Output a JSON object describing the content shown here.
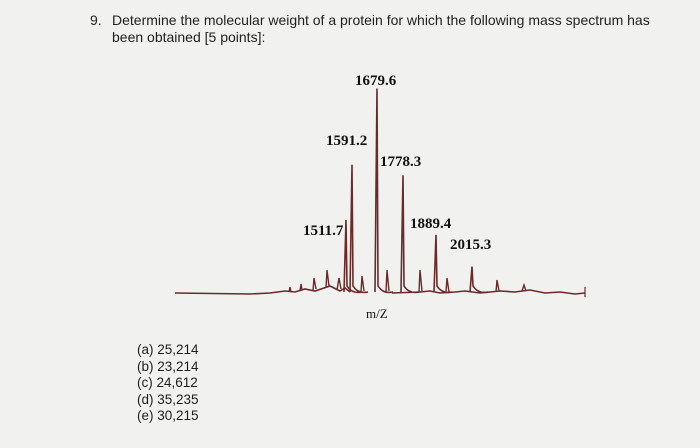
{
  "question": {
    "number": "9.",
    "text": "Determine the molecular weight of a protein for which the following mass spectrum has been obtained [5 points]:"
  },
  "spectrum": {
    "x_axis_label": "m/Z",
    "peak_labels": [
      "1511.7",
      "1591.2",
      "1679.6",
      "1778.3",
      "1889.4",
      "2015.3"
    ],
    "relative_heights": [
      0.34,
      0.6,
      0.96,
      0.55,
      0.27,
      0.12
    ],
    "line_color": "#6b2a2a"
  },
  "options": [
    {
      "label": "(a) 25,214"
    },
    {
      "label": "(b) 23,214"
    },
    {
      "label": "(c) 24,612"
    },
    {
      "label": "(d) 35,235"
    },
    {
      "label": "(e) 30,215"
    }
  ]
}
